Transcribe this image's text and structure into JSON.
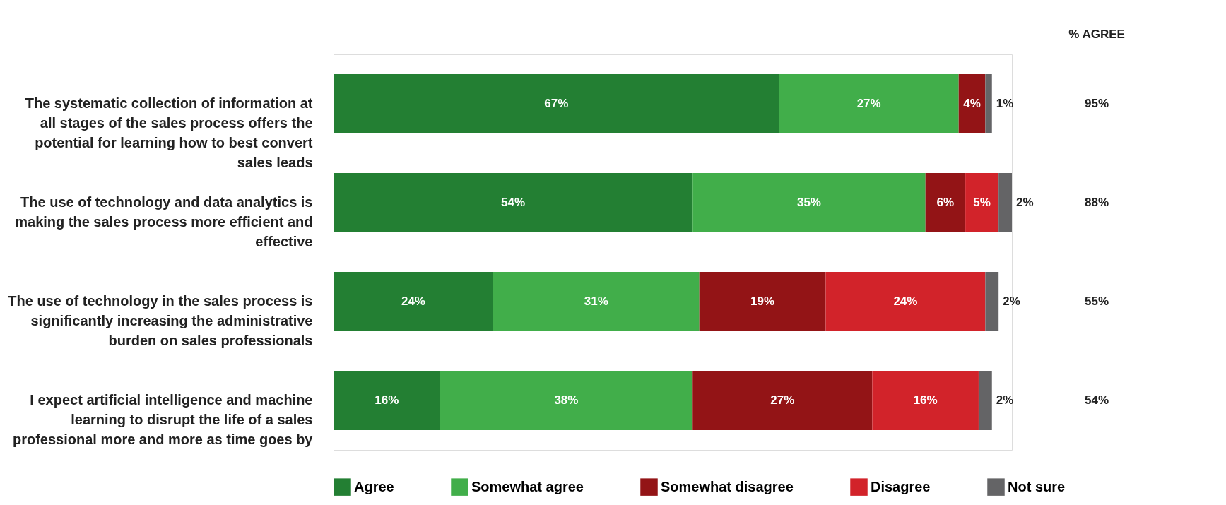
{
  "chart_data": {
    "type": "bar",
    "orientation": "horizontal",
    "stacked": true,
    "categories": [
      "The systematic collection of information at all stages of the sales process offers the potential for learning how to best convert sales leads",
      "The use of technology and data analytics is making the sales process more efficient and effective",
      "The use of technology in the sales process is significantly increasing the administrative burden on sales professionals",
      "I expect artificial intelligence and machine learning to disrupt the life of a sales professional more and more as time goes by"
    ],
    "series": [
      {
        "name": "Agree",
        "color": "#237f33",
        "values": [
          67,
          54,
          24,
          16
        ],
        "value_labels": [
          "67%",
          "54%",
          "24%",
          "16%"
        ]
      },
      {
        "name": "Somewhat agree",
        "color": "#41ae4a",
        "values": [
          27,
          35,
          31,
          38
        ],
        "value_labels": [
          "27%",
          "35%",
          "31%",
          "38%"
        ]
      },
      {
        "name": "Somewhat disagree",
        "color": "#931416",
        "values": [
          4,
          6,
          19,
          27
        ],
        "value_labels": [
          "4%",
          "6%",
          "19%",
          "27%"
        ]
      },
      {
        "name": "Disagree",
        "color": "#d2232a",
        "values": [
          null,
          5,
          24,
          16
        ],
        "value_labels": [
          null,
          "5%",
          "24%",
          "16%"
        ]
      },
      {
        "name": "Not sure",
        "color": "#646466",
        "values": [
          1,
          2,
          2,
          2
        ],
        "value_labels": [
          "1%",
          "2%",
          "2%",
          "2%"
        ]
      }
    ],
    "xlim": [
      0,
      102
    ],
    "tick_labels": "y",
    "legend": "bottom",
    "annotations": [
      "% AGREE",
      "95%",
      "88%",
      "55%",
      "54%"
    ]
  }
}
